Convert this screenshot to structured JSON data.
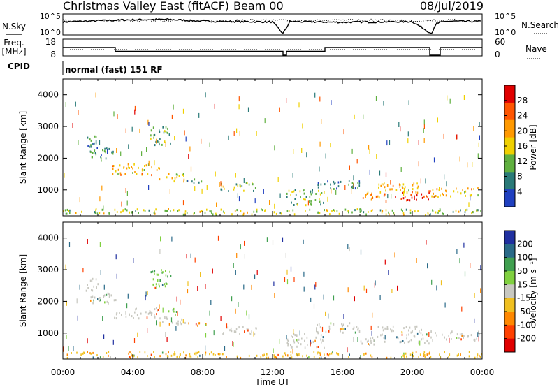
{
  "header": {
    "station": "Christmas Valley East (fitACF)",
    "beam": "Beam 00",
    "date": "08/Jul/2019"
  },
  "noise_panel": {
    "left_label": "N.Sky",
    "right_label": "N.Search",
    "left_ticks": [
      "10^5",
      "10^0"
    ],
    "right_ticks": [
      "10^5",
      "10^0"
    ]
  },
  "freq_panel": {
    "left_label_1": "Freq.",
    "left_label_2": "[MHz]",
    "right_label": "Nave",
    "left_ticks": [
      "18",
      "8"
    ],
    "right_ticks": [
      "60",
      "0"
    ]
  },
  "cpid": {
    "label": "CPID",
    "value": "normal (fast) 151 RF"
  },
  "x_axis": {
    "label": "Time UT",
    "ticks": [
      "00:00",
      "04:00",
      "08:00",
      "12:00",
      "16:00",
      "20:00",
      "00:00"
    ]
  },
  "power_colorbar": {
    "label": "Power [dB]",
    "ticks": [
      "28",
      "24",
      "20",
      "16",
      "12",
      "8",
      "4"
    ]
  },
  "velocity_colorbar": {
    "label": "Velocity [m s⁻¹]",
    "ticks": [
      "200",
      "100",
      "50",
      "15",
      "-15",
      "-50",
      "-100",
      "-200"
    ]
  },
  "chart_data": [
    {
      "type": "line",
      "name": "noise",
      "x": [
        0,
        2,
        4,
        6,
        8,
        10,
        12,
        12.6,
        13,
        16,
        20,
        21.1,
        21.4,
        22,
        24
      ],
      "y_log10": [
        3.2,
        3.5,
        3.8,
        3.9,
        3.4,
        3.3,
        3.2,
        0,
        3.3,
        3.1,
        3.3,
        0,
        2.8,
        3.4,
        3.3
      ],
      "xlim": [
        0,
        24
      ]
    },
    {
      "type": "line",
      "name": "frequency",
      "x": [
        0,
        3,
        3,
        12.6,
        12.6,
        12.8,
        12.8,
        15,
        15,
        21,
        21,
        21.6,
        21.6,
        24
      ],
      "y": [
        13,
        13,
        10.5,
        10.5,
        8,
        8,
        10.5,
        10.5,
        13,
        13,
        8,
        8,
        13,
        13
      ],
      "ylim": [
        8,
        18
      ],
      "xlim": [
        0,
        24
      ]
    },
    {
      "type": "heatmap",
      "name": "Power",
      "x_unit": "hours UT",
      "y_unit": "km",
      "xlim": [
        0,
        24
      ],
      "ylim": [
        180,
        4500
      ],
      "y_ticks": [
        1000,
        2000,
        3000,
        4000
      ],
      "color_scale": [
        {
          "value": 28,
          "color": "#e00000"
        },
        {
          "value": 24,
          "color": "#ff5500"
        },
        {
          "value": 20,
          "color": "#ff9900"
        },
        {
          "value": 16,
          "color": "#f0d000"
        },
        {
          "value": 12,
          "color": "#60b040"
        },
        {
          "value": 8,
          "color": "#2a7a78"
        },
        {
          "value": 4,
          "color": "#2040c0"
        }
      ],
      "regions": [
        {
          "t0": 1.3,
          "t1": 2.2,
          "r0": 2300,
          "r1": 2700,
          "p": 10
        },
        {
          "t0": 1.5,
          "t1": 3.0,
          "r0": 1900,
          "r1": 2300,
          "p": 9
        },
        {
          "t0": 2.8,
          "t1": 5.5,
          "r0": 1450,
          "r1": 1800,
          "p": 18
        },
        {
          "t0": 5.5,
          "t1": 7.0,
          "r0": 1250,
          "r1": 1500,
          "p": 16
        },
        {
          "t0": 7.0,
          "t1": 8.2,
          "r0": 1200,
          "r1": 1350,
          "p": 10
        },
        {
          "t0": 5.0,
          "t1": 6.2,
          "r0": 2400,
          "r1": 3000,
          "p": 11
        },
        {
          "t0": 9.0,
          "t1": 11.2,
          "r0": 950,
          "r1": 1200,
          "p": 14
        },
        {
          "t0": 12.8,
          "t1": 15.0,
          "r0": 500,
          "r1": 1000,
          "p": 12
        },
        {
          "t0": 14.5,
          "t1": 17.0,
          "r0": 1000,
          "r1": 1300,
          "p": 8
        },
        {
          "t0": 17.0,
          "t1": 18.5,
          "r0": 600,
          "r1": 900,
          "p": 20
        },
        {
          "t0": 18.0,
          "t1": 20.5,
          "r0": 900,
          "r1": 1200,
          "p": 18
        },
        {
          "t0": 19.0,
          "t1": 21.0,
          "r0": 650,
          "r1": 950,
          "p": 26
        },
        {
          "t0": 21.0,
          "t1": 23.8,
          "r0": 750,
          "r1": 1050,
          "p": 18
        },
        {
          "t0": 0.0,
          "t1": 24.0,
          "r0": 200,
          "r1": 380,
          "p": 14
        }
      ]
    },
    {
      "type": "heatmap",
      "name": "Velocity",
      "x_unit": "hours UT",
      "y_unit": "km",
      "xlim": [
        0,
        24
      ],
      "ylim": [
        180,
        4500
      ],
      "y_ticks": [
        1000,
        2000,
        3000,
        4000
      ],
      "color_scale": [
        {
          "value": 200,
          "color": "#2030a0"
        },
        {
          "value": 100,
          "color": "#2a6a88"
        },
        {
          "value": 50,
          "color": "#40a050"
        },
        {
          "value": 15,
          "color": "#80d040"
        },
        {
          "value": 0,
          "color": "#c8c8c0"
        },
        {
          "value": -15,
          "color": "#f0c020"
        },
        {
          "value": -50,
          "color": "#ff8800"
        },
        {
          "value": -100,
          "color": "#ff4000"
        },
        {
          "value": -200,
          "color": "#e00000"
        }
      ],
      "regions": [
        {
          "t0": 1.3,
          "t1": 2.2,
          "r0": 2300,
          "r1": 2700,
          "v": 0
        },
        {
          "t0": 1.5,
          "t1": 3.0,
          "r0": 1900,
          "r1": 2300,
          "v": 0
        },
        {
          "t0": 2.8,
          "t1": 5.5,
          "r0": 1450,
          "r1": 1800,
          "v": 0
        },
        {
          "t0": 5.5,
          "t1": 7.0,
          "r0": 1250,
          "r1": 1500,
          "v": 0
        },
        {
          "t0": 6.0,
          "t1": 6.7,
          "r0": 1550,
          "r1": 1750,
          "v": 30
        },
        {
          "t0": 7.0,
          "t1": 8.2,
          "r0": 1200,
          "r1": 1350,
          "v": -60
        },
        {
          "t0": 5.0,
          "t1": 6.2,
          "r0": 2400,
          "r1": 3000,
          "v": 30
        },
        {
          "t0": 9.0,
          "t1": 11.2,
          "r0": 950,
          "r1": 1200,
          "v": 0
        },
        {
          "t0": 12.8,
          "t1": 15.0,
          "r0": 500,
          "r1": 1000,
          "v": 0
        },
        {
          "t0": 14.5,
          "t1": 17.0,
          "r0": 1000,
          "r1": 1300,
          "v": 0
        },
        {
          "t0": 17.0,
          "t1": 18.5,
          "r0": 600,
          "r1": 900,
          "v": 0
        },
        {
          "t0": 18.0,
          "t1": 20.5,
          "r0": 900,
          "r1": 1200,
          "v": 0
        },
        {
          "t0": 19.0,
          "t1": 21.0,
          "r0": 650,
          "r1": 950,
          "v": 0
        },
        {
          "t0": 21.0,
          "t1": 23.8,
          "r0": 750,
          "r1": 1050,
          "v": 0
        },
        {
          "t0": 0.0,
          "t1": 24.0,
          "r0": 200,
          "r1": 380,
          "v": -30
        }
      ]
    }
  ]
}
